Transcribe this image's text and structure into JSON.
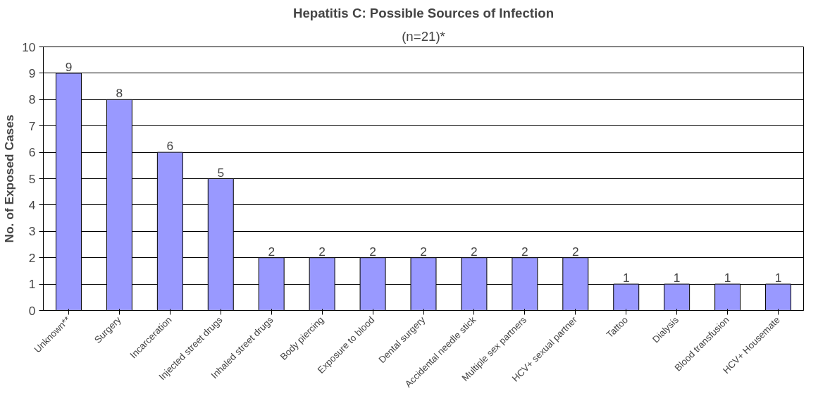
{
  "chart_data": {
    "type": "bar",
    "title": "Hepatitis C: Possible Sources of Infection",
    "subtitle": "(n=21)*",
    "ylabel": "No. of Exposed Cases",
    "categories": [
      "Unknown**",
      "Surgery",
      "Incarceration",
      "Injected street drugs",
      "Inhaled street drugs",
      "Body piercing",
      "Exposure to blood",
      "Dental surgery",
      "Accidental needle stick",
      "Multiple sex partners",
      "HCV+ sexual partner",
      "Tattoo",
      "Dialysis",
      "Blood transfusion",
      "HCV+ Housemate"
    ],
    "values": [
      9,
      8,
      6,
      5,
      2,
      2,
      2,
      2,
      2,
      2,
      2,
      1,
      1,
      1,
      1
    ],
    "color": "#9999ff",
    "ylim": [
      0,
      10
    ],
    "yticks": [
      0,
      1,
      2,
      3,
      4,
      5,
      6,
      7,
      8,
      9,
      10
    ],
    "grid": "y",
    "data_labels": true
  }
}
